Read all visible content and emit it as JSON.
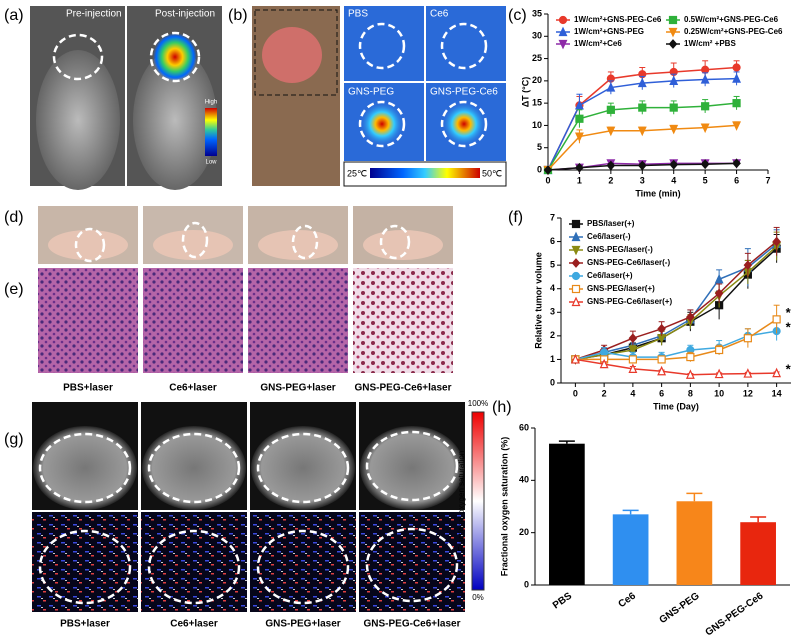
{
  "panels": {
    "labels": [
      "(a)",
      "(b)",
      "(c)",
      "(d)",
      "(e)",
      "(f)",
      "(g)",
      "(h)"
    ],
    "a": {
      "pre": "Pre-injection",
      "post": "Post-injection",
      "high": "High",
      "low": "Low"
    },
    "b": {
      "tiles": [
        "PBS",
        "Ce6",
        "GNS-PEG",
        "GNS-PEG-Ce6"
      ],
      "scale_min": "25℃",
      "scale_max": "50℃"
    },
    "e": {
      "captions": [
        "PBS+laser",
        "Ce6+laser",
        "GNS-PEG+laser",
        "GNS-PEG-Ce6+laser"
      ]
    },
    "g": {
      "captions": [
        "PBS+laser",
        "Ce6+laser",
        "GNS-PEG+laser",
        "GNS-PEG-Ce6+laser"
      ],
      "scale_max": "100%",
      "scale_min": "0%",
      "scale_title": "Fractional oxygen saturation"
    }
  },
  "chart_data": [
    {
      "type": "line",
      "legend": "top",
      "xlabel": "Time (min)",
      "ylabel": "ΔT (°C)",
      "x": [
        0,
        1,
        2,
        3,
        4,
        5,
        6
      ],
      "xlim": [
        0,
        7
      ],
      "xticks": [
        0,
        1,
        2,
        3,
        4,
        5,
        6,
        7
      ],
      "ylim": [
        0,
        35
      ],
      "yticks": [
        0,
        5,
        10,
        15,
        20,
        25,
        30,
        35
      ],
      "series": [
        {
          "name": "1W/cm²+GNS-PEG-Ce6",
          "color": "#e8392b",
          "marker": "circle",
          "values": [
            0,
            14.5,
            20.5,
            21.5,
            22,
            22.5,
            23
          ],
          "errors": [
            0,
            2,
            1.5,
            1.5,
            2,
            2,
            1.5
          ]
        },
        {
          "name": "1W/cm²+GNS-PEG",
          "color": "#2f5fd8",
          "marker": "triangle",
          "values": [
            0,
            14.5,
            18.5,
            19.5,
            20,
            20.3,
            20.5
          ],
          "errors": [
            0,
            2.5,
            1.5,
            1.5,
            1.5,
            1.5,
            1.5
          ]
        },
        {
          "name": "1W/cm²+Ce6",
          "color": "#8e2aa8",
          "marker": "triangle-down",
          "values": [
            0,
            0.5,
            1.5,
            1.3,
            1.5,
            1.5,
            1.5
          ],
          "errors": [
            0,
            0.5,
            0.5,
            0.5,
            0.5,
            0.5,
            0.5
          ]
        },
        {
          "name": "0.5W/cm²+GNS-PEG-Ce6",
          "color": "#2fb13a",
          "marker": "square",
          "values": [
            0,
            11.5,
            13.5,
            14,
            14,
            14.3,
            15
          ],
          "errors": [
            0,
            2,
            1.5,
            1.5,
            1.5,
            1.5,
            1.5
          ]
        },
        {
          "name": "0.25W/cm²+GNS-PEG-Ce6",
          "color": "#f08a12",
          "marker": "triangle-down",
          "values": [
            0,
            7.5,
            8.8,
            8.8,
            9.2,
            9.5,
            10
          ],
          "errors": [
            0,
            1.5,
            0.8,
            0.8,
            0.8,
            0.8,
            0.8
          ]
        },
        {
          "name": "1W/cm² +PBS",
          "color": "#111111",
          "marker": "diamond",
          "values": [
            0,
            0.5,
            1,
            1,
            1.2,
            1.3,
            1.5
          ],
          "errors": [
            0,
            0.4,
            0.4,
            0.4,
            0.4,
            0.4,
            0.4
          ]
        }
      ]
    },
    {
      "type": "line",
      "legend": "upper left",
      "xlabel": "Time (Day)",
      "ylabel": "Relative tumor volume",
      "x": [
        0,
        2,
        4,
        6,
        8,
        10,
        12,
        14
      ],
      "xlim": [
        -1,
        15
      ],
      "xticks": [
        0,
        2,
        4,
        6,
        8,
        10,
        12,
        14
      ],
      "ylim": [
        0,
        7
      ],
      "yticks": [
        0,
        1,
        2,
        3,
        4,
        5,
        6,
        7
      ],
      "annotations": [
        "*",
        "*",
        "*"
      ],
      "series": [
        {
          "name": "PBS/laser(+)",
          "color": "#111111",
          "marker": "square",
          "values": [
            1,
            1.2,
            1.5,
            1.9,
            2.6,
            3.3,
            4.6,
            5.7
          ],
          "errors": [
            0,
            0.2,
            0.2,
            0.3,
            0.4,
            0.6,
            0.6,
            0.6
          ]
        },
        {
          "name": "Ce6/laser(-)",
          "color": "#2f6fb8",
          "marker": "triangle",
          "values": [
            1,
            1.3,
            1.6,
            2,
            2.7,
            4.4,
            4.9,
            5.9
          ],
          "errors": [
            0,
            0.2,
            0.3,
            0.3,
            0.4,
            0.4,
            0.8,
            0.6
          ]
        },
        {
          "name": "GNS-PEG/laser(-)",
          "color": "#8a8a12",
          "marker": "triangle-down",
          "values": [
            1,
            1.2,
            1.4,
            1.9,
            2.6,
            3.7,
            4.7,
            5.8
          ],
          "errors": [
            0,
            0.2,
            0.2,
            0.3,
            0.3,
            0.5,
            0.5,
            0.6
          ]
        },
        {
          "name": "GNS-PEG-Ce6/laser(-)",
          "color": "#9a1f1f",
          "marker": "diamond",
          "values": [
            1,
            1.4,
            1.9,
            2.3,
            2.8,
            3.8,
            5,
            6
          ],
          "errors": [
            0,
            0.2,
            0.3,
            0.3,
            0.3,
            0.4,
            0.5,
            0.6
          ]
        },
        {
          "name": "Ce6/laser(+)",
          "color": "#3fa9e0",
          "marker": "circle",
          "values": [
            1,
            1.3,
            1.1,
            1.1,
            1.4,
            1.5,
            2,
            2.2
          ],
          "errors": [
            0,
            0.2,
            0.2,
            0.2,
            0.2,
            0.3,
            0.3,
            0.4
          ]
        },
        {
          "name": "GNS-PEG/laser(+)",
          "color": "#e88a1a",
          "marker": "open-square",
          "values": [
            1,
            1,
            1,
            1,
            1.1,
            1.4,
            1.9,
            2.7
          ],
          "errors": [
            0,
            0.1,
            0.1,
            0.1,
            0.2,
            0.2,
            0.4,
            0.6
          ]
        },
        {
          "name": "GNS-PEG-Ce6/laser(+)",
          "color": "#e8392b",
          "marker": "open-triangle",
          "values": [
            1,
            0.8,
            0.6,
            0.5,
            0.35,
            0.38,
            0.4,
            0.42
          ],
          "errors": [
            0,
            0.1,
            0.1,
            0.05,
            0.05,
            0.05,
            0.05,
            0.05
          ]
        }
      ]
    },
    {
      "type": "bar",
      "ylabel": "Fractional oxygen saturation (%)",
      "categories": [
        "PBS",
        "Ce6",
        "GNS-PEG",
        "GNS-PEG-Ce6"
      ],
      "values": [
        54,
        27,
        32,
        24
      ],
      "errors": [
        1,
        1.5,
        3,
        2
      ],
      "colors": [
        "#000000",
        "#2f8ff0",
        "#f7861a",
        "#e8260e"
      ],
      "ylim": [
        0,
        60
      ],
      "yticks": [
        0,
        20,
        40,
        60
      ]
    }
  ]
}
